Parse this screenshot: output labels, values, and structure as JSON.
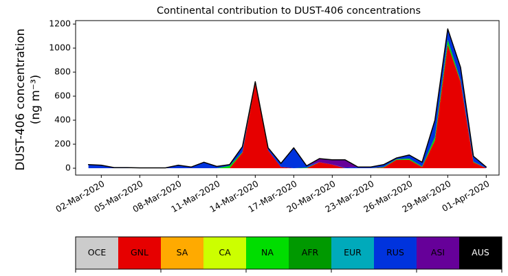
{
  "chart_data": {
    "type": "stackarea",
    "title": "Continental contribution to DUST-406 concentrations",
    "y_label": [
      "DUST-406 concentration",
      "(ng m⁻³)"
    ],
    "x": [
      "01-Mar-2020",
      "02-Mar-2020",
      "03-Mar-2020",
      "04-Mar-2020",
      "05-Mar-2020",
      "06-Mar-2020",
      "07-Mar-2020",
      "08-Mar-2020",
      "09-Mar-2020",
      "10-Mar-2020",
      "11-Mar-2020",
      "12-Mar-2020",
      "13-Mar-2020",
      "14-Mar-2020",
      "15-Mar-2020",
      "16-Mar-2020",
      "17-Mar-2020",
      "18-Mar-2020",
      "19-Mar-2020",
      "20-Mar-2020",
      "21-Mar-2020",
      "22-Mar-2020",
      "23-Mar-2020",
      "24-Mar-2020",
      "25-Mar-2020",
      "26-Mar-2020",
      "27-Mar-2020",
      "28-Mar-2020",
      "29-Mar-2020",
      "30-Mar-2020",
      "31-Mar-2020",
      "01-Apr-2020"
    ],
    "xlim": [
      "29-Feb-2020",
      "02-Apr-2020"
    ],
    "xticks": [
      "02-Mar-2020",
      "05-Mar-2020",
      "08-Mar-2020",
      "11-Mar-2020",
      "14-Mar-2020",
      "17-Mar-2020",
      "20-Mar-2020",
      "23-Mar-2020",
      "26-Mar-2020",
      "29-Mar-2020",
      "01-Apr-2020"
    ],
    "ylim": [
      -57,
      1229
    ],
    "yticks": [
      0,
      200,
      400,
      600,
      800,
      1000,
      1200
    ],
    "legend": "below",
    "series": [
      {
        "name": "OCE",
        "color": "#cccccc",
        "values": [
          0,
          0,
          0,
          0,
          0,
          0,
          0,
          0,
          0,
          0,
          0,
          0,
          0,
          0,
          0,
          0,
          0,
          0,
          0,
          0,
          0,
          0,
          0,
          0,
          0,
          0,
          0,
          0,
          0,
          0,
          0,
          0
        ]
      },
      {
        "name": "GNL",
        "color": "#e60000",
        "values": [
          0,
          0,
          0,
          0,
          0,
          0,
          0,
          0,
          0,
          0,
          0,
          0,
          130,
          710,
          150,
          10,
          0,
          0,
          50,
          30,
          0,
          0,
          0,
          5,
          70,
          70,
          10,
          230,
          1030,
          720,
          50,
          0
        ]
      },
      {
        "name": "SA",
        "color": "#ffaa00",
        "values": [
          0,
          0,
          0,
          0,
          0,
          0,
          0,
          0,
          0,
          0,
          0,
          0,
          0,
          0,
          0,
          0,
          0,
          0,
          0,
          0,
          0,
          0,
          0,
          0,
          0,
          0,
          0,
          0,
          0,
          0,
          0,
          0
        ]
      },
      {
        "name": "CA",
        "color": "#ccff00",
        "values": [
          0,
          0,
          0,
          0,
          0,
          0,
          0,
          0,
          0,
          0,
          0,
          0,
          0,
          0,
          0,
          0,
          0,
          0,
          0,
          0,
          0,
          0,
          0,
          0,
          0,
          0,
          0,
          0,
          0,
          0,
          0,
          0
        ]
      },
      {
        "name": "NA",
        "color": "#00dd00",
        "values": [
          0,
          0,
          0,
          0,
          0,
          0,
          0,
          0,
          0,
          0,
          0,
          20,
          5,
          5,
          0,
          0,
          0,
          5,
          0,
          0,
          0,
          0,
          0,
          5,
          5,
          10,
          5,
          30,
          40,
          10,
          5,
          0
        ]
      },
      {
        "name": "AFR",
        "color": "#009900",
        "values": [
          0,
          0,
          0,
          0,
          0,
          0,
          0,
          0,
          0,
          0,
          0,
          0,
          0,
          0,
          0,
          0,
          0,
          0,
          0,
          0,
          0,
          0,
          0,
          0,
          0,
          0,
          0,
          0,
          0,
          0,
          0,
          0
        ]
      },
      {
        "name": "EUR",
        "color": "#00aabb",
        "values": [
          0,
          0,
          0,
          0,
          0,
          0,
          0,
          0,
          0,
          0,
          0,
          0,
          0,
          0,
          0,
          0,
          0,
          0,
          0,
          0,
          0,
          0,
          0,
          0,
          0,
          0,
          0,
          0,
          0,
          0,
          0,
          0
        ]
      },
      {
        "name": "RUS",
        "color": "#0033dd",
        "values": [
          30,
          25,
          5,
          5,
          3,
          3,
          3,
          25,
          10,
          50,
          15,
          10,
          45,
          5,
          20,
          30,
          170,
          15,
          0,
          0,
          5,
          10,
          10,
          20,
          10,
          30,
          35,
          140,
          90,
          110,
          45,
          10
        ]
      },
      {
        "name": "ASI",
        "color": "#660099",
        "values": [
          0,
          0,
          0,
          0,
          0,
          0,
          0,
          0,
          0,
          0,
          0,
          0,
          0,
          0,
          0,
          0,
          0,
          0,
          30,
          40,
          65,
          0,
          0,
          0,
          0,
          0,
          0,
          0,
          0,
          0,
          0,
          0
        ]
      },
      {
        "name": "AUS",
        "color": "#000000",
        "values": [
          0,
          0,
          0,
          0,
          0,
          0,
          0,
          0,
          0,
          0,
          0,
          0,
          0,
          0,
          0,
          0,
          0,
          0,
          0,
          0,
          0,
          0,
          0,
          0,
          0,
          0,
          0,
          0,
          0,
          0,
          0,
          0
        ]
      }
    ]
  }
}
